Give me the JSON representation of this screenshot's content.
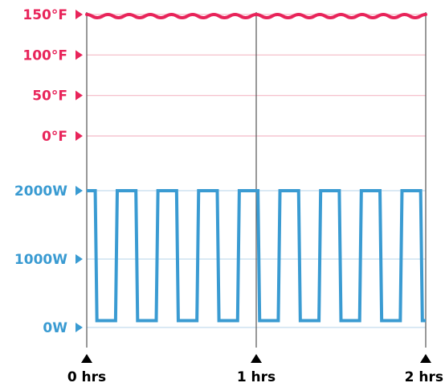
{
  "chart_data": {
    "type": "line",
    "title": "",
    "colors": {
      "temperature": "#e8245a",
      "power": "#3a9bd2",
      "temperature_grid": "#f4b9c6",
      "power_grid": "#c3dcee",
      "axis": "#555555",
      "x_tick_marker": "#000000"
    },
    "temperature_axis": {
      "ticks": [
        {
          "value": 150,
          "label": "150°F"
        },
        {
          "value": 100,
          "label": "100°F"
        },
        {
          "value": 50,
          "label": "50°F"
        },
        {
          "value": 0,
          "label": "0°F"
        }
      ],
      "range": [
        0,
        150
      ]
    },
    "power_axis": {
      "ticks": [
        {
          "value": 2000,
          "label": "2000W"
        },
        {
          "value": 1000,
          "label": "1000W"
        },
        {
          "value": 0,
          "label": "0W"
        }
      ],
      "range": [
        0,
        2000
      ]
    },
    "x_axis": {
      "range": [
        0,
        2
      ],
      "ticks": [
        {
          "value": 0,
          "label": "0 hrs"
        },
        {
          "value": 1,
          "label": "1 hrs"
        },
        {
          "value": 2,
          "label": "2 hrs"
        }
      ]
    },
    "series": [
      {
        "key": "temperature",
        "x": [
          0,
          0.0625,
          0.125,
          0.1875,
          0.25,
          0.3125,
          0.375,
          0.4375,
          0.5,
          0.5625,
          0.625,
          0.6875,
          0.75,
          0.8125,
          0.875,
          0.9375,
          1.0,
          1.0625,
          1.125,
          1.1875,
          1.25,
          1.3125,
          1.375,
          1.4375,
          1.5,
          1.5625,
          1.625,
          1.6875,
          1.75,
          1.8125,
          1.875,
          1.9375,
          2.0
        ],
        "values": [
          150,
          146,
          150,
          146,
          150,
          146,
          150,
          146,
          150,
          146,
          150,
          146,
          150,
          146,
          150,
          146,
          150,
          146,
          150,
          146,
          150,
          146,
          150,
          146,
          150,
          146,
          150,
          146,
          150,
          146,
          150,
          146,
          150
        ]
      },
      {
        "key": "power",
        "x": [
          0,
          0.05,
          0.06,
          0.17,
          0.18,
          0.29,
          0.3,
          0.41,
          0.42,
          0.53,
          0.54,
          0.65,
          0.66,
          0.77,
          0.78,
          0.89,
          0.9,
          1.01,
          1.02,
          1.13,
          1.14,
          1.25,
          1.26,
          1.37,
          1.38,
          1.49,
          1.5,
          1.61,
          1.62,
          1.73,
          1.74,
          1.85,
          1.86,
          1.97,
          1.98,
          2.0
        ],
        "values": [
          2000,
          2000,
          100,
          100,
          2000,
          2000,
          100,
          100,
          2000,
          2000,
          100,
          100,
          2000,
          2000,
          100,
          100,
          2000,
          2000,
          100,
          100,
          2000,
          2000,
          100,
          100,
          2000,
          2000,
          100,
          100,
          2000,
          2000,
          100,
          100,
          2000,
          2000,
          100,
          100
        ]
      }
    ]
  }
}
